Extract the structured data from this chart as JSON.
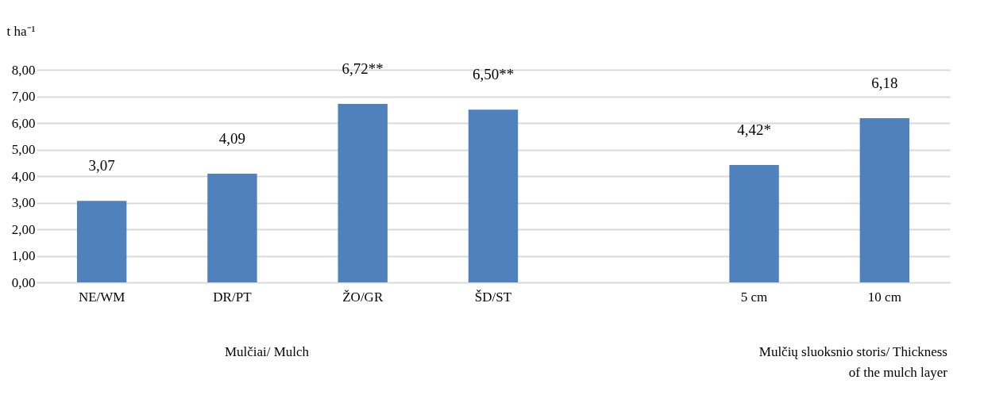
{
  "chart_data": {
    "type": "bar",
    "ylabel": "t ha⁻¹",
    "categories": [
      "NE/WM",
      "DR/PT",
      "ŽO/GR",
      "ŠD/ST",
      null,
      "5 cm",
      "10 cm"
    ],
    "values": [
      3.07,
      4.09,
      6.72,
      6.5,
      null,
      4.42,
      6.18
    ],
    "value_labels": [
      "3,07",
      "4,09",
      "6,72**",
      "6,50**",
      null,
      "4,42*",
      "6,18"
    ],
    "color": "#4f81bd",
    "ylim": [
      0,
      8
    ],
    "yticks": [
      {
        "value": 0,
        "label": "0,00"
      },
      {
        "value": 1,
        "label": "1,00"
      },
      {
        "value": 2,
        "label": "2,00"
      },
      {
        "value": 3,
        "label": "3,00"
      },
      {
        "value": 4,
        "label": "4,00"
      },
      {
        "value": 5,
        "label": "5,00"
      },
      {
        "value": 6,
        "label": "6,00"
      },
      {
        "value": 7,
        "label": "7,00"
      },
      {
        "value": 8,
        "label": "8,00"
      }
    ],
    "grid": "y",
    "annotations": [
      "Mulčiai/ Mulch",
      "Mulčių sluoksnio storis/ Thickness of the mulch layer"
    ]
  }
}
